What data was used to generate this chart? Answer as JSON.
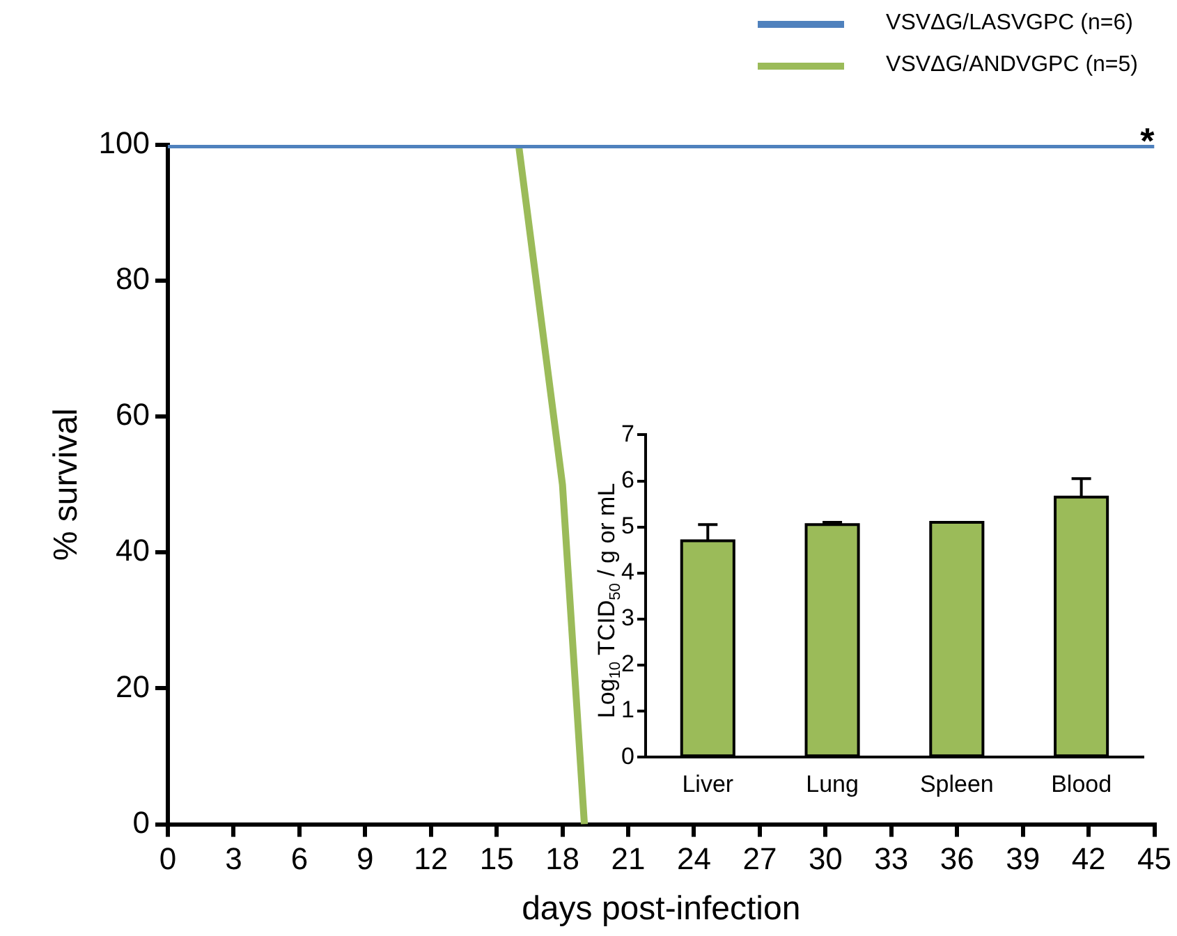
{
  "chart_data": [
    {
      "type": "line",
      "xlabel": "days post-infection",
      "ylabel": "% survival",
      "xlim": [
        0,
        45
      ],
      "xticks": [
        0,
        3,
        6,
        9,
        12,
        15,
        18,
        21,
        24,
        27,
        30,
        33,
        36,
        39,
        42,
        45
      ],
      "ylim": [
        0,
        100
      ],
      "yticks": [
        0,
        20,
        40,
        60,
        80,
        100
      ],
      "grid": false,
      "legend": "top right",
      "marker": "none",
      "series": [
        {
          "name": "VSVΔG/LASVGPC (n=6)",
          "color": "#4f81bd",
          "x": [
            0,
            45
          ],
          "values": [
            100,
            100
          ]
        },
        {
          "name": "VSVΔG/ANDVGPC (n=5)",
          "color": "#9bbb59",
          "x": [
            16,
            18,
            19
          ],
          "values": [
            100,
            50,
            0
          ]
        }
      ],
      "annotations": [
        {
          "text": "*",
          "x": 45,
          "y": 100
        }
      ]
    },
    {
      "type": "bar",
      "ylabel": "Log$_{10}$ TCID$_{50}$ / g or mL",
      "categories": [
        "Liver",
        "Lung",
        "Spleen",
        "Blood"
      ],
      "values": [
        4.7,
        5.05,
        5.1,
        5.65
      ],
      "color": "#9bbb59",
      "errors": [
        [
          4.7,
          5.05
        ],
        [
          5.05,
          5.1
        ],
        null,
        [
          5.65,
          6.05
        ]
      ],
      "ylim": [
        0,
        7
      ],
      "yticks": [
        0,
        1,
        2,
        3,
        4,
        5,
        6,
        7
      ],
      "grid": false
    }
  ]
}
